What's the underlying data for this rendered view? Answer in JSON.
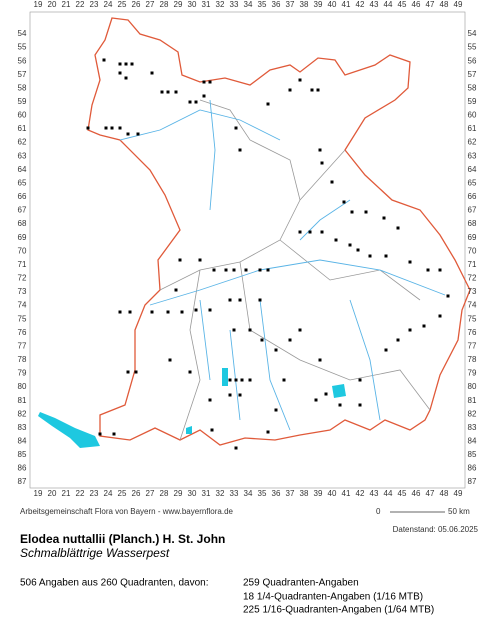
{
  "map": {
    "columns": [
      19,
      20,
      21,
      22,
      23,
      24,
      25,
      26,
      27,
      28,
      29,
      30,
      31,
      32,
      33,
      34,
      35,
      36,
      37,
      38,
      39,
      40,
      41,
      42,
      43,
      44,
      45,
      46,
      47,
      48,
      49
    ],
    "rows": [
      54,
      55,
      56,
      57,
      58,
      59,
      60,
      61,
      62,
      63,
      64,
      65,
      66,
      67,
      68,
      69,
      70,
      71,
      72,
      73,
      74,
      75,
      76,
      77,
      78,
      79,
      80,
      81,
      82,
      83,
      84,
      85,
      86,
      87
    ],
    "credit": "Arbeitsgemeinschaft Flora von Bayern - www.bayernflora.de",
    "scale_start": "0",
    "scale_end": "50 km",
    "data_date": "Datenstand: 05.06.2025"
  },
  "species": {
    "name": "Elodea nuttallii (Planch.) H. St. John",
    "common_name": "Schmalblättrige Wasserpest"
  },
  "summary": {
    "total": "506 Angaben aus 260 Quadranten, davon:",
    "details": [
      "259 Quadranten-Angaben",
      "18 1/4-Quadranten-Angaben (1/16 MTB)",
      "225 1/16-Quadranten-Angaben (1/64 MTB)"
    ]
  }
}
